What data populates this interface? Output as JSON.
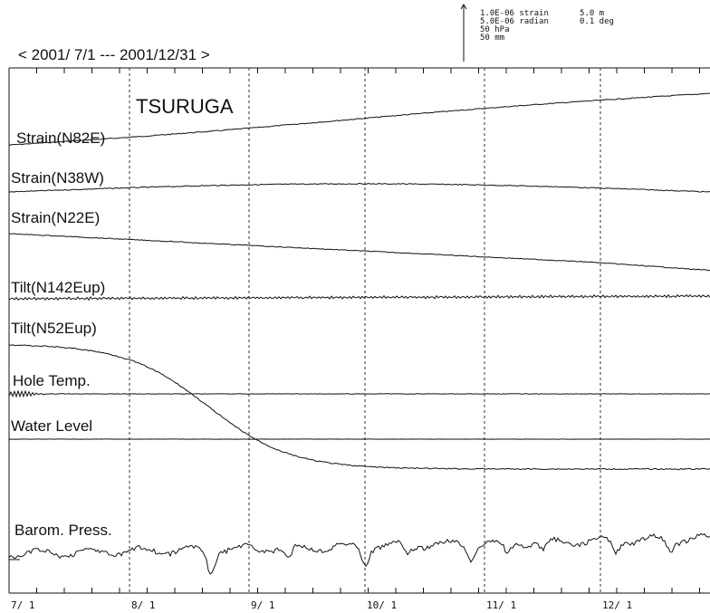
{
  "header": {
    "period": "< 2001/ 7/1 --- 2001/12/31 >"
  },
  "scale": {
    "left": [
      "1.0E-06 strain",
      "5.0E-06 radian",
      "50 hPa",
      "50 mm"
    ],
    "right": [
      "5.0 m",
      "0.1 deg"
    ]
  },
  "station": "TSURUGA",
  "traces": [
    "Strain(N82E)",
    "Strain(N38W)",
    "Strain(N22E)",
    "Tilt(N142Eup)",
    "Tilt(N52Eup)",
    "Hole Temp.",
    "Water Level",
    "Barom. Press."
  ],
  "dates": [
    "7/ 1",
    "8/ 1",
    "9/ 1",
    "10/ 1",
    "11/ 1",
    "12/ 1"
  ]
}
